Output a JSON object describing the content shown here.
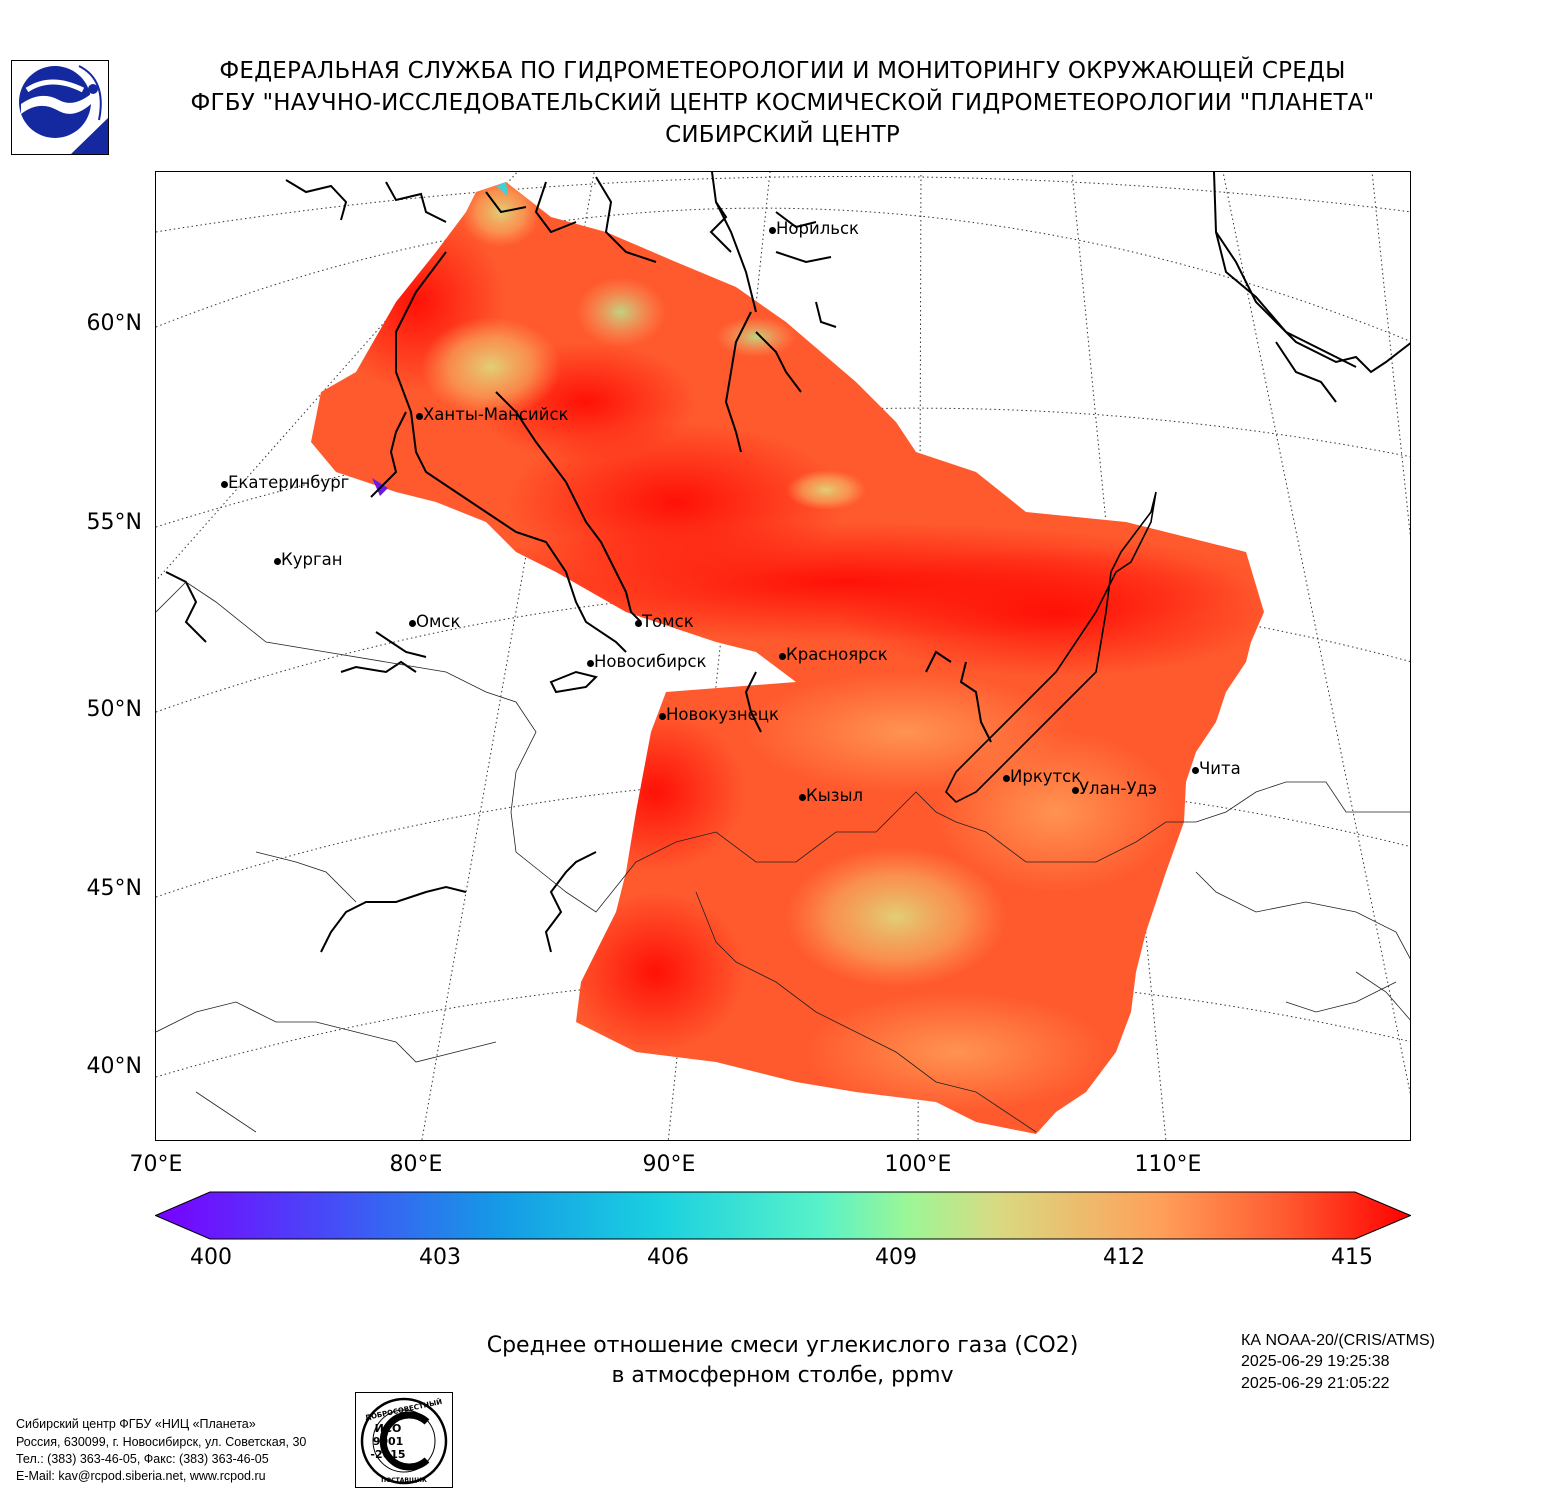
{
  "header": {
    "line1": "ФЕДЕРАЛЬНАЯ СЛУЖБА ПО ГИДРОМЕТЕОРОЛОГИИ И МОНИТОРИНГУ ОКРУЖАЮЩЕЙ СРЕДЫ",
    "line2": "ФГБУ \"НАУЧНО-ИССЛЕДОВАТЕЛЬСКИЙ ЦЕНТР КОСМИЧЕСКОЙ ГИДРОМЕТЕОРОЛОГИИ \"ПЛАНЕТА\"",
    "line3": "СИБИРСКИЙ ЦЕНТР",
    "logo_icon": "planeta-logo-icon"
  },
  "map": {
    "lat_labels": [
      "60°N",
      "55°N",
      "50°N",
      "45°N",
      "40°N"
    ],
    "lon_labels": [
      "70°E",
      "80°E",
      "90°E",
      "100°E",
      "110°E"
    ],
    "cities": [
      {
        "name": "Норильск"
      },
      {
        "name": "Ханты-Мансийск"
      },
      {
        "name": "Екатеринбург"
      },
      {
        "name": "Курган"
      },
      {
        "name": "Омск"
      },
      {
        "name": "Томск"
      },
      {
        "name": "Новосибирск"
      },
      {
        "name": "Красноярск"
      },
      {
        "name": "Новокузнецк"
      },
      {
        "name": "Иркутск"
      },
      {
        "name": "Улан-Удэ"
      },
      {
        "name": "Чита"
      },
      {
        "name": "Кызыл"
      }
    ],
    "colors": {
      "high": "#ff1a0f",
      "mid": "#ff5a2e",
      "low": "#ffa25a",
      "min": "#d6d479"
    }
  },
  "colorbar": {
    "ticks": [
      "400",
      "403",
      "406",
      "409",
      "412",
      "415"
    ],
    "min": 400,
    "max": 415
  },
  "caption": {
    "line1": "Среднее отношение смеси углекислого газа (CO2)",
    "line2": "в атмосферном столбе, ppmv"
  },
  "satellite": {
    "name": "КА NOAA-20/(CRIS/ATMS)",
    "start": "2025-06-29 19:25:38",
    "end": "2025-06-29 21:05:22"
  },
  "footer": {
    "org": "Сибирский центр ФГБУ «НИЦ «Планета»",
    "address": "Россия, 630099, г. Новосибирск, ул. Советская, 30",
    "phones": "Тел.: (383) 363-46-05, Факс: (383) 363-46-05",
    "email": "E-Mail: kav@rcpod.siberia.net, www.rcpod.ru",
    "stamp_icon": "iso-9001-stamp-icon",
    "stamp_top": "ДОБРОСОВЕСТНЫЙ",
    "stamp_mid1": "ИСО",
    "stamp_mid2": "9001",
    "stamp_mid3": "-2015",
    "stamp_bottom": "ПОСТАВЩИК"
  }
}
